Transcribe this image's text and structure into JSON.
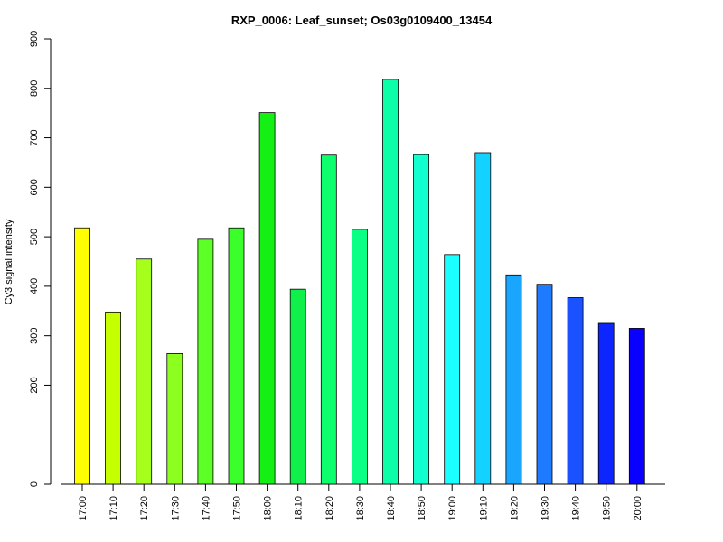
{
  "chart_data": {
    "type": "bar",
    "title": "RXP_0006: Leaf_sunset; Os03g0109400_13454",
    "xlabel": "",
    "ylabel": "Cy3 signal intensity",
    "ylim": [
      0,
      900
    ],
    "yticks": [
      "0",
      "200",
      "300",
      "400",
      "500",
      "600",
      "700",
      "800",
      "900"
    ],
    "categories": [
      "17:00",
      "17:10",
      "17:20",
      "17:30",
      "17:40",
      "17:50",
      "18:00",
      "18:10",
      "18:20",
      "18:30",
      "18:40",
      "18:50",
      "19:00",
      "19:10",
      "19:20",
      "19:30",
      "19:40",
      "19:50",
      "20:00"
    ],
    "values": [
      518,
      348,
      455,
      264,
      495,
      518,
      751,
      394,
      665,
      515,
      818,
      666,
      464,
      670,
      423,
      404,
      377,
      325,
      315
    ],
    "colors": [
      "#ffff00",
      "#c6ff00",
      "#a6ff1a",
      "#8dff1f",
      "#5cff26",
      "#3bff2b",
      "#14f014",
      "#11f04a",
      "#0dff6e",
      "#0aff85",
      "#0affa8",
      "#12ffcf",
      "#1affff",
      "#14d2ff",
      "#1aa6ff",
      "#1e7bff",
      "#1a52ff",
      "#0d26ff",
      "#0a00ff"
    ],
    "grid": false,
    "legend": "none"
  }
}
